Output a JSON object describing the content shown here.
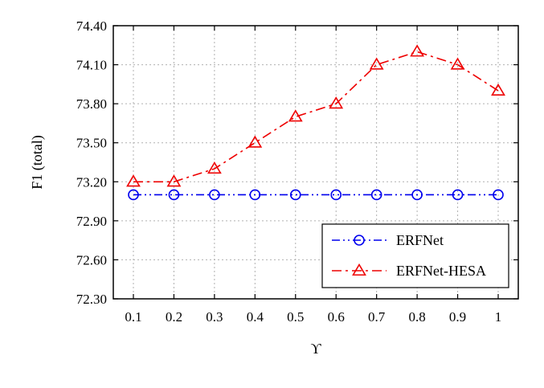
{
  "chart_data": {
    "type": "line",
    "title": "",
    "xlabel": "ϒ",
    "ylabel": "F1 (total)",
    "x": [
      0.1,
      0.2,
      0.3,
      0.4,
      0.5,
      0.6,
      0.7,
      0.8,
      0.9,
      1
    ],
    "x_tick_labels": [
      "0.1",
      "0.2",
      "0.3",
      "0.4",
      "0.5",
      "0.6",
      "0.7",
      "0.8",
      "0.9",
      "1"
    ],
    "ylim": [
      72.3,
      74.4
    ],
    "y_ticks": [
      72.3,
      72.6,
      72.9,
      73.2,
      73.5,
      73.8,
      74.1,
      74.4
    ],
    "y_tick_labels": [
      "72.30",
      "72.60",
      "72.90",
      "73.20",
      "73.50",
      "73.80",
      "74.10",
      "74.40"
    ],
    "grid": true,
    "legend_position": "bottom-right",
    "series": [
      {
        "name": "ERFNet",
        "values": [
          73.1,
          73.1,
          73.1,
          73.1,
          73.1,
          73.1,
          73.1,
          73.1,
          73.1,
          73.1
        ],
        "color": "#0000ee",
        "marker": "circle",
        "line_style": "dash-dot-dot"
      },
      {
        "name": "ERFNet-HESA",
        "values": [
          73.2,
          73.2,
          73.3,
          73.5,
          73.7,
          73.8,
          74.1,
          74.2,
          74.1,
          73.9
        ],
        "color": "#ee0000",
        "marker": "triangle",
        "line_style": "dash-dot"
      }
    ]
  }
}
